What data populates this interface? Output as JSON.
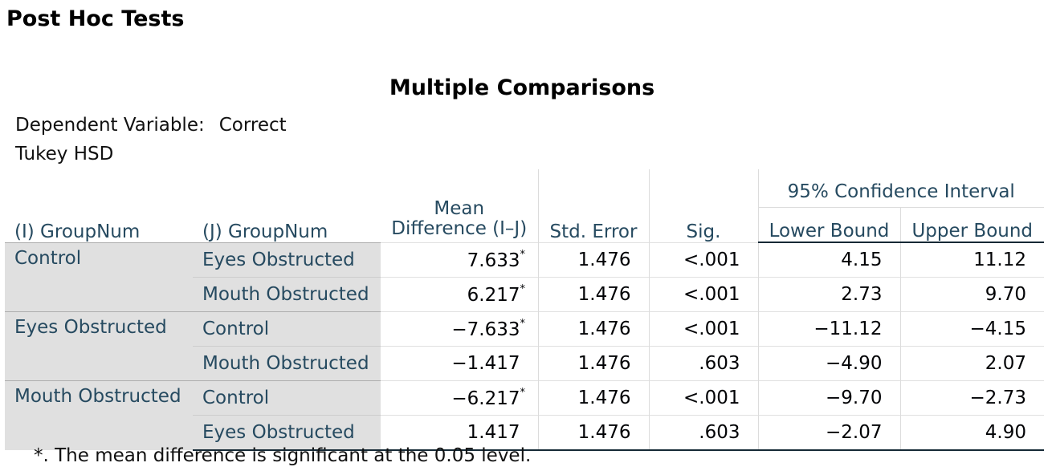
{
  "section_title": "Post Hoc Tests",
  "table": {
    "title": "Multiple Comparisons",
    "dependent_variable_label": "Dependent Variable:",
    "dependent_variable_value": "Correct",
    "method": "Tukey HSD",
    "headers": {
      "i_group": "(I) GroupNum",
      "j_group": "(J) GroupNum",
      "mean_difference": "Mean Difference (I–J)",
      "std_error": "Std. Error",
      "sig": "Sig.",
      "ci": "95% Confidence Interval",
      "lower": "Lower Bound",
      "upper": "Upper Bound"
    },
    "groups": [
      {
        "i": "Control",
        "rows": [
          {
            "j": "Eyes Obstructed",
            "mean_diff": "7.633",
            "star": "*",
            "std_error": "1.476",
            "sig": "<.001",
            "lower": "4.15",
            "upper": "11.12"
          },
          {
            "j": "Mouth Obstructed",
            "mean_diff": "6.217",
            "star": "*",
            "std_error": "1.476",
            "sig": "<.001",
            "lower": "2.73",
            "upper": "9.70"
          }
        ]
      },
      {
        "i": "Eyes Obstructed",
        "rows": [
          {
            "j": "Control",
            "mean_diff": "−7.633",
            "star": "*",
            "std_error": "1.476",
            "sig": "<.001",
            "lower": "−11.12",
            "upper": "−4.15"
          },
          {
            "j": "Mouth Obstructed",
            "mean_diff": "−1.417",
            "star": "",
            "std_error": "1.476",
            "sig": ".603",
            "lower": "−4.90",
            "upper": "2.07"
          }
        ]
      },
      {
        "i": "Mouth Obstructed",
        "rows": [
          {
            "j": "Control",
            "mean_diff": "−6.217",
            "star": "*",
            "std_error": "1.476",
            "sig": "<.001",
            "lower": "−9.70",
            "upper": "−2.73"
          },
          {
            "j": "Eyes Obstructed",
            "mean_diff": "1.417",
            "star": "",
            "std_error": "1.476",
            "sig": ".603",
            "lower": "−2.07",
            "upper": "4.90"
          }
        ]
      }
    ],
    "footnote": "*. The mean difference is significant at the 0.05 level."
  }
}
